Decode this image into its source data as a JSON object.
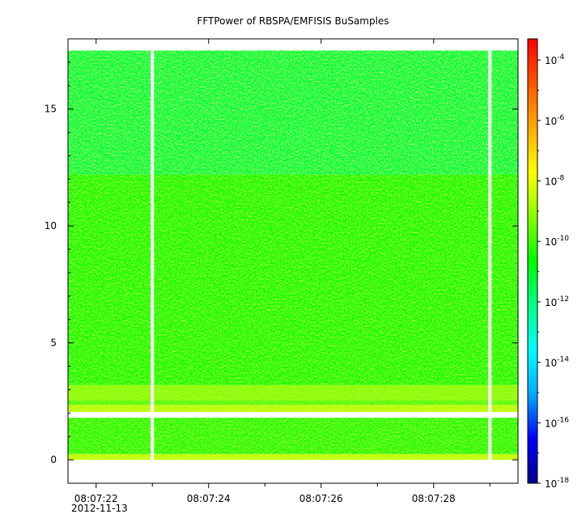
{
  "chart_data": {
    "type": "heatmap",
    "title": "FFTPower of RBSPA/EMFISIS  BuSamples",
    "xlabel": "",
    "ylabel": "",
    "x_range": [
      "08:07:21.5",
      "08:07:29.5"
    ],
    "ylim": [
      -1,
      18
    ],
    "y_ticks": [
      0,
      5,
      10,
      15
    ],
    "y_tick_labels": [
      "0",
      "5",
      "10",
      "15"
    ],
    "x_ticks": [
      "08:07:22",
      "08:07:24",
      "08:07:26",
      "08:07:28"
    ],
    "x_date_label": "2012-11-13",
    "x_minor_ticks": [
      "08:07:23",
      "08:07:25",
      "08:07:27",
      "08:07:29"
    ],
    "data_y_range": [
      0,
      17.5
    ],
    "gaps": [
      "08:07:23.0",
      "08:07:29.0"
    ],
    "bands": [
      {
        "y": [
          0,
          0.25
        ],
        "log10_power": -8.5,
        "description_color": "orange-red"
      },
      {
        "y": [
          0.25,
          1.8
        ],
        "log10_power": -10.3
      },
      {
        "y": [
          2.05,
          2.35
        ],
        "log10_power": -8.6
      },
      {
        "y": [
          2.35,
          2.55
        ],
        "log10_power": -9.8
      },
      {
        "y": [
          2.55,
          3.2
        ],
        "log10_power": -9.2
      },
      {
        "y": [
          3.2,
          12.2
        ],
        "log10_power": -10.4
      },
      {
        "y": [
          12.2,
          17.5
        ],
        "log10_power": -11.4
      }
    ],
    "colorbar": {
      "scale": "log",
      "range_log10": [
        -18,
        -3.3
      ],
      "tick_exponents": [
        "-4",
        "-6",
        "-8",
        "-10",
        "-12",
        "-14",
        "-16",
        "-18"
      ],
      "tick_base": "10",
      "colormap": [
        "#00008b",
        "#0000ff",
        "#00aaff",
        "#00ffff",
        "#00ff88",
        "#00ff00",
        "#88ff00",
        "#ffff00",
        "#ffaa00",
        "#ff5500",
        "#ff0000"
      ]
    }
  }
}
